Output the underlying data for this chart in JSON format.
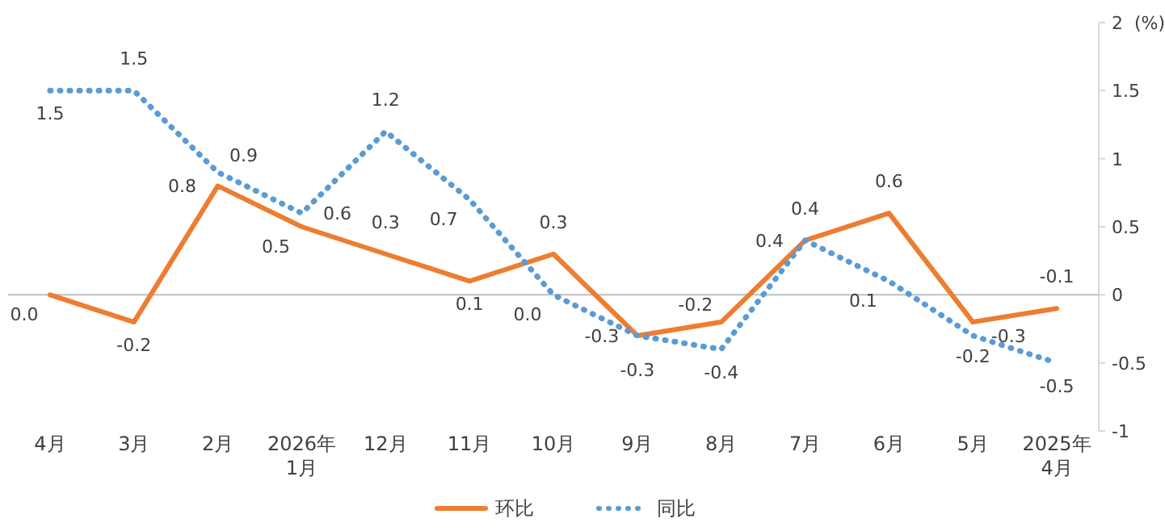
{
  "chart_data": {
    "type": "line",
    "categories": [
      "4月",
      "3月",
      "2月",
      "2026年 1月",
      "12月",
      "11月",
      "10月",
      "9月",
      "8月",
      "7月",
      "6月",
      "5月",
      "2025年 4月"
    ],
    "series": [
      {
        "name": "环比",
        "color": "#ed7d31",
        "line_style": "solid",
        "values": [
          0.0,
          -0.2,
          0.8,
          0.5,
          0.3,
          0.1,
          0.3,
          -0.3,
          -0.2,
          0.4,
          0.6,
          -0.2,
          -0.1
        ],
        "value_labels": [
          "0.0",
          "-0.2",
          "0.8",
          "0.5",
          "0.3",
          "0.1",
          "0.3",
          "-0.3",
          "-0.2",
          "0.4",
          "0.6",
          "-0.2",
          "-0.1"
        ]
      },
      {
        "name": "同比",
        "color": "#5b9bd5",
        "line_style": "dotted",
        "values": [
          1.5,
          1.5,
          0.9,
          0.6,
          1.2,
          0.7,
          0.0,
          -0.3,
          -0.4,
          0.4,
          0.1,
          -0.3,
          -0.5
        ],
        "value_labels": [
          "1.5",
          "1.5",
          "0.9",
          "0.6",
          "1.2",
          "0.7",
          "0.0",
          "-0.3",
          "-0.4",
          "0.4",
          "0.1",
          "-0.3",
          "-0.5"
        ]
      }
    ],
    "ylabel": "(%)",
    "ylim": [
      -1,
      2
    ],
    "yticks": [
      -1,
      -0.5,
      0,
      0.5,
      1,
      1.5,
      2
    ],
    "legend": "bottom",
    "marker": "none"
  }
}
